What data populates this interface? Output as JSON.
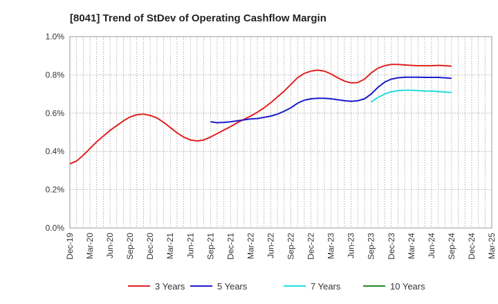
{
  "chart_data": {
    "type": "line",
    "title": "[8041]  Trend of StDev of Operating Cashflow Margin",
    "xlabel": "",
    "ylabel": "",
    "ylim": [
      0,
      1.0
    ],
    "xlim": [
      "2019-12",
      "2025-03"
    ],
    "y_ticks": [
      "0.0%",
      "0.2%",
      "0.4%",
      "0.6%",
      "0.8%",
      "1.0%"
    ],
    "x_ticks": [
      "Dec-19",
      "Mar-20",
      "Jun-20",
      "Sep-20",
      "Dec-20",
      "Mar-21",
      "Jun-21",
      "Sep-21",
      "Dec-21",
      "Mar-22",
      "Jun-22",
      "Sep-22",
      "Dec-22",
      "Mar-23",
      "Jun-23",
      "Sep-23",
      "Dec-23",
      "Mar-24",
      "Jun-24",
      "Sep-24",
      "Dec-24",
      "Mar-25"
    ],
    "grid": true,
    "legend_position": "bottom",
    "series": [
      {
        "name": "3 Years",
        "color": "#e02020",
        "x": [
          "2019-12",
          "2020-01",
          "2020-02",
          "2020-03",
          "2020-04",
          "2020-05",
          "2020-06",
          "2020-07",
          "2020-08",
          "2020-09",
          "2020-10",
          "2020-11",
          "2020-12",
          "2021-01",
          "2021-02",
          "2021-03",
          "2021-04",
          "2021-05",
          "2021-06",
          "2021-07",
          "2021-08",
          "2021-09",
          "2021-10",
          "2021-11",
          "2021-12",
          "2022-01",
          "2022-02",
          "2022-03",
          "2022-04",
          "2022-05",
          "2022-06",
          "2022-07",
          "2022-08",
          "2022-09",
          "2022-10",
          "2022-11",
          "2022-12",
          "2023-01",
          "2023-02",
          "2023-03",
          "2023-04",
          "2023-05",
          "2023-06",
          "2023-07",
          "2023-08",
          "2023-09",
          "2023-10",
          "2023-11",
          "2023-12",
          "2024-01",
          "2024-02",
          "2024-03",
          "2024-04",
          "2024-05",
          "2024-06",
          "2024-07",
          "2024-08",
          "2024-09"
        ],
        "values": [
          0.335,
          0.35,
          0.38,
          0.415,
          0.45,
          0.48,
          0.51,
          0.535,
          0.56,
          0.58,
          0.592,
          0.595,
          0.588,
          0.575,
          0.552,
          0.525,
          0.497,
          0.475,
          0.46,
          0.455,
          0.46,
          0.475,
          0.493,
          0.512,
          0.53,
          0.55,
          0.568,
          0.585,
          0.605,
          0.628,
          0.655,
          0.685,
          0.715,
          0.75,
          0.785,
          0.808,
          0.82,
          0.825,
          0.82,
          0.805,
          0.785,
          0.768,
          0.758,
          0.76,
          0.778,
          0.81,
          0.835,
          0.848,
          0.855,
          0.855,
          0.852,
          0.85,
          0.848,
          0.848,
          0.848,
          0.85,
          0.848,
          0.846
        ]
      },
      {
        "name": "5 Years",
        "color": "#1a1acc",
        "x": [
          "2021-09",
          "2021-10",
          "2021-11",
          "2021-12",
          "2022-01",
          "2022-02",
          "2022-03",
          "2022-04",
          "2022-05",
          "2022-06",
          "2022-07",
          "2022-08",
          "2022-09",
          "2022-10",
          "2022-11",
          "2022-12",
          "2023-01",
          "2023-02",
          "2023-03",
          "2023-04",
          "2023-05",
          "2023-06",
          "2023-07",
          "2023-08",
          "2023-09",
          "2023-10",
          "2023-11",
          "2023-12",
          "2024-01",
          "2024-02",
          "2024-03",
          "2024-04",
          "2024-05",
          "2024-06",
          "2024-07",
          "2024-08",
          "2024-09"
        ],
        "values": [
          0.555,
          0.55,
          0.552,
          0.555,
          0.56,
          0.565,
          0.57,
          0.572,
          0.578,
          0.585,
          0.595,
          0.61,
          0.628,
          0.652,
          0.668,
          0.675,
          0.678,
          0.678,
          0.675,
          0.67,
          0.665,
          0.662,
          0.665,
          0.675,
          0.7,
          0.735,
          0.762,
          0.778,
          0.785,
          0.788,
          0.788,
          0.788,
          0.787,
          0.787,
          0.787,
          0.785,
          0.782
        ]
      },
      {
        "name": "7 Years",
        "color": "#22dddd",
        "x": [
          "2023-09",
          "2023-10",
          "2023-11",
          "2023-12",
          "2024-01",
          "2024-02",
          "2024-03",
          "2024-04",
          "2024-05",
          "2024-06",
          "2024-07",
          "2024-08",
          "2024-09"
        ],
        "values": [
          0.658,
          0.682,
          0.7,
          0.712,
          0.718,
          0.72,
          0.72,
          0.718,
          0.716,
          0.715,
          0.713,
          0.71,
          0.708
        ]
      },
      {
        "name": "10 Years",
        "color": "#228822",
        "x": [],
        "values": []
      }
    ]
  }
}
